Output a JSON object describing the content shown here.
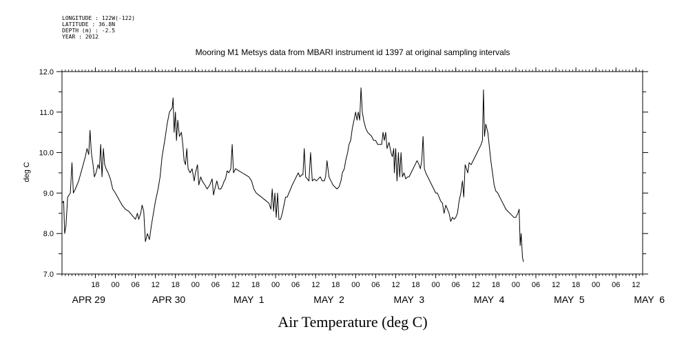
{
  "header": {
    "meta_lines": [
      "LONGITUDE : 122W(-122)",
      "LATITUDE : 36.8N",
      "DEPTH (m) : -2.5",
      "YEAR : 2012"
    ]
  },
  "chart_data": {
    "type": "line",
    "title": "Mooring M1 Metsys data from MBARI instrument id 1397 at original sampling intervals",
    "xlabel": "Air Temperature (deg C)",
    "ylabel": "deg C",
    "x_units": "hours since APR 29 00:00 (2012)",
    "xlim": [
      -16,
      158
    ],
    "ylim": [
      7.0,
      12.0
    ],
    "y_ticks": [
      7.0,
      8.0,
      9.0,
      10.0,
      11.0,
      12.0
    ],
    "y_tick_labels": [
      "7.0",
      "8.0",
      "9.0",
      "10.0",
      "11.0",
      "12.0"
    ],
    "hour_ticks": [
      {
        "x": -6,
        "label": "18"
      },
      {
        "x": 0,
        "label": "00"
      },
      {
        "x": 6,
        "label": "06"
      },
      {
        "x": 12,
        "label": "12"
      },
      {
        "x": 18,
        "label": "18"
      },
      {
        "x": 24,
        "label": "00"
      },
      {
        "x": 30,
        "label": "06"
      },
      {
        "x": 36,
        "label": "12"
      },
      {
        "x": 42,
        "label": "18"
      },
      {
        "x": 48,
        "label": "00"
      },
      {
        "x": 54,
        "label": "06"
      },
      {
        "x": 60,
        "label": "12"
      },
      {
        "x": 66,
        "label": "18"
      },
      {
        "x": 72,
        "label": "00"
      },
      {
        "x": 78,
        "label": "06"
      },
      {
        "x": 84,
        "label": "12"
      },
      {
        "x": 90,
        "label": "18"
      },
      {
        "x": 96,
        "label": "00"
      },
      {
        "x": 102,
        "label": "06"
      },
      {
        "x": 108,
        "label": "12"
      },
      {
        "x": 114,
        "label": "18"
      },
      {
        "x": 120,
        "label": "00"
      },
      {
        "x": 126,
        "label": "06"
      },
      {
        "x": 132,
        "label": "12"
      },
      {
        "x": 138,
        "label": "18"
      },
      {
        "x": 144,
        "label": "00"
      },
      {
        "x": 150,
        "label": "06"
      },
      {
        "x": 156,
        "label": "12"
      }
    ],
    "date_labels": [
      {
        "x": -8,
        "label": "APR 29"
      },
      {
        "x": 16,
        "label": "APR 30"
      },
      {
        "x": 40,
        "label": "MAY  1"
      },
      {
        "x": 64,
        "label": "MAY  2"
      },
      {
        "x": 88,
        "label": "MAY  3"
      },
      {
        "x": 112,
        "label": "MAY  4"
      },
      {
        "x": 136,
        "label": "MAY  5"
      },
      {
        "x": 160,
        "label": "MAY  6"
      }
    ],
    "series": [
      {
        "points": [
          [
            -16,
            8.75
          ],
          [
            -15.5,
            8.8
          ],
          [
            -15.2,
            8.0
          ],
          [
            -14.8,
            8.2
          ],
          [
            -14.3,
            8.9
          ],
          [
            -13.5,
            9.0
          ],
          [
            -13,
            9.75
          ],
          [
            -12.6,
            9.0
          ],
          [
            -12,
            9.1
          ],
          [
            -11,
            9.3
          ],
          [
            -10,
            9.6
          ],
          [
            -9,
            9.9
          ],
          [
            -8.5,
            10.1
          ],
          [
            -8,
            9.95
          ],
          [
            -7.6,
            10.55
          ],
          [
            -7.2,
            10.0
          ],
          [
            -6.7,
            9.7
          ],
          [
            -6.3,
            9.4
          ],
          [
            -5.8,
            9.5
          ],
          [
            -5.2,
            9.7
          ],
          [
            -4.8,
            9.6
          ],
          [
            -4.4,
            10.2
          ],
          [
            -4,
            9.4
          ],
          [
            -3.6,
            10.1
          ],
          [
            -3.2,
            9.7
          ],
          [
            -2.8,
            9.6
          ],
          [
            -2.2,
            9.5
          ],
          [
            -1.5,
            9.35
          ],
          [
            -0.8,
            9.1
          ],
          [
            0,
            9.0
          ],
          [
            1,
            8.85
          ],
          [
            2,
            8.7
          ],
          [
            3,
            8.6
          ],
          [
            4,
            8.55
          ],
          [
            5,
            8.45
          ],
          [
            6,
            8.35
          ],
          [
            6.6,
            8.5
          ],
          [
            7,
            8.35
          ],
          [
            7.6,
            8.5
          ],
          [
            8,
            8.7
          ],
          [
            8.5,
            8.55
          ],
          [
            9,
            7.8
          ],
          [
            9.6,
            8.0
          ],
          [
            10.2,
            7.85
          ],
          [
            10.8,
            8.2
          ],
          [
            11.4,
            8.5
          ],
          [
            12,
            8.8
          ],
          [
            12.8,
            9.1
          ],
          [
            13.4,
            9.4
          ],
          [
            14,
            9.9
          ],
          [
            14.8,
            10.3
          ],
          [
            15.5,
            10.7
          ],
          [
            16.2,
            11.0
          ],
          [
            17,
            11.1
          ],
          [
            17.3,
            11.35
          ],
          [
            17.6,
            10.5
          ],
          [
            18,
            11.0
          ],
          [
            18.3,
            10.3
          ],
          [
            18.7,
            10.8
          ],
          [
            19.2,
            10.4
          ],
          [
            19.8,
            10.5
          ],
          [
            20.2,
            10.2
          ],
          [
            20.6,
            9.8
          ],
          [
            21,
            9.7
          ],
          [
            21.4,
            10.1
          ],
          [
            21.8,
            9.6
          ],
          [
            22.4,
            9.5
          ],
          [
            23,
            9.6
          ],
          [
            23.6,
            9.3
          ],
          [
            24,
            9.5
          ],
          [
            24.6,
            9.7
          ],
          [
            25,
            9.2
          ],
          [
            25.6,
            9.4
          ],
          [
            26,
            9.3
          ],
          [
            26.8,
            9.2
          ],
          [
            27.5,
            9.1
          ],
          [
            28.3,
            9.2
          ],
          [
            29,
            9.35
          ],
          [
            29.4,
            8.95
          ],
          [
            29.8,
            9.1
          ],
          [
            30.4,
            9.3
          ],
          [
            31,
            9.1
          ],
          [
            31.6,
            9.1
          ],
          [
            32.2,
            9.2
          ],
          [
            32.6,
            9.3
          ],
          [
            33,
            9.35
          ],
          [
            33.5,
            9.55
          ],
          [
            34,
            9.5
          ],
          [
            34.6,
            9.6
          ],
          [
            35,
            10.2
          ],
          [
            35.4,
            9.5
          ],
          [
            36,
            9.6
          ],
          [
            37,
            9.55
          ],
          [
            38,
            9.5
          ],
          [
            39,
            9.45
          ],
          [
            40,
            9.4
          ],
          [
            40.8,
            9.3
          ],
          [
            41.5,
            9.1
          ],
          [
            42.2,
            9.0
          ],
          [
            43,
            8.95
          ],
          [
            43.8,
            8.9
          ],
          [
            44.5,
            8.85
          ],
          [
            45.3,
            8.8
          ],
          [
            46,
            8.75
          ],
          [
            46.6,
            8.6
          ],
          [
            47,
            9.1
          ],
          [
            47.4,
            8.55
          ],
          [
            47.8,
            9.0
          ],
          [
            48.2,
            8.4
          ],
          [
            48.6,
            9.0
          ],
          [
            49,
            8.35
          ],
          [
            49.5,
            8.35
          ],
          [
            50,
            8.5
          ],
          [
            50.5,
            8.7
          ],
          [
            51,
            8.9
          ],
          [
            51.5,
            8.9
          ],
          [
            52,
            9.0
          ],
          [
            52.5,
            9.1
          ],
          [
            53,
            9.2
          ],
          [
            53.6,
            9.3
          ],
          [
            54.2,
            9.4
          ],
          [
            54.8,
            9.5
          ],
          [
            55.3,
            9.4
          ],
          [
            55.8,
            9.45
          ],
          [
            56.2,
            9.45
          ],
          [
            56.6,
            10.1
          ],
          [
            57,
            9.4
          ],
          [
            57.5,
            9.35
          ],
          [
            58,
            9.3
          ],
          [
            58.5,
            10.0
          ],
          [
            59,
            9.3
          ],
          [
            59.6,
            9.35
          ],
          [
            60.2,
            9.3
          ],
          [
            60.8,
            9.35
          ],
          [
            61.4,
            9.4
          ],
          [
            62,
            9.3
          ],
          [
            62.6,
            9.3
          ],
          [
            63,
            9.4
          ],
          [
            63.4,
            9.8
          ],
          [
            64,
            9.4
          ],
          [
            64.6,
            9.3
          ],
          [
            65.2,
            9.2
          ],
          [
            65.8,
            9.15
          ],
          [
            66.4,
            9.1
          ],
          [
            67,
            9.15
          ],
          [
            67.6,
            9.3
          ],
          [
            68,
            9.5
          ],
          [
            68.6,
            9.6
          ],
          [
            69,
            9.8
          ],
          [
            69.6,
            10.0
          ],
          [
            70,
            10.2
          ],
          [
            70.5,
            10.3
          ],
          [
            71,
            10.6
          ],
          [
            71.5,
            10.8
          ],
          [
            72,
            11.0
          ],
          [
            72.4,
            10.8
          ],
          [
            72.8,
            11.0
          ],
          [
            73.2,
            10.8
          ],
          [
            73.6,
            11.6
          ],
          [
            74,
            11.0
          ],
          [
            74.4,
            10.8
          ],
          [
            75,
            10.6
          ],
          [
            75.6,
            10.5
          ],
          [
            76.2,
            10.45
          ],
          [
            76.8,
            10.4
          ],
          [
            77.4,
            10.3
          ],
          [
            78,
            10.3
          ],
          [
            78.6,
            10.2
          ],
          [
            79.2,
            10.2
          ],
          [
            79.8,
            10.2
          ],
          [
            80.2,
            10.5
          ],
          [
            80.6,
            10.3
          ],
          [
            81,
            10.5
          ],
          [
            81.4,
            10.1
          ],
          [
            82,
            10.25
          ],
          [
            82.6,
            10.0
          ],
          [
            83,
            9.9
          ],
          [
            83.4,
            10.1
          ],
          [
            83.6,
            9.5
          ],
          [
            84,
            10.1
          ],
          [
            84.4,
            9.3
          ],
          [
            84.8,
            10.0
          ],
          [
            85.2,
            9.4
          ],
          [
            85.6,
            10.0
          ],
          [
            86,
            9.4
          ],
          [
            86.5,
            9.5
          ],
          [
            87,
            9.35
          ],
          [
            87.6,
            9.4
          ],
          [
            88,
            9.4
          ],
          [
            88.6,
            9.5
          ],
          [
            89.2,
            9.6
          ],
          [
            89.8,
            9.7
          ],
          [
            90.4,
            9.8
          ],
          [
            91,
            9.7
          ],
          [
            91.4,
            9.6
          ],
          [
            91.8,
            9.8
          ],
          [
            92.2,
            10.4
          ],
          [
            92.6,
            9.6
          ],
          [
            93,
            9.5
          ],
          [
            93.6,
            9.4
          ],
          [
            94.2,
            9.3
          ],
          [
            94.8,
            9.2
          ],
          [
            95.4,
            9.1
          ],
          [
            96,
            9.0
          ],
          [
            96.5,
            9.0
          ],
          [
            97,
            8.9
          ],
          [
            97.5,
            8.8
          ],
          [
            98,
            8.75
          ],
          [
            98.5,
            8.5
          ],
          [
            99,
            8.7
          ],
          [
            99.5,
            8.6
          ],
          [
            100,
            8.5
          ],
          [
            100.5,
            8.3
          ],
          [
            101,
            8.4
          ],
          [
            101.5,
            8.35
          ],
          [
            102,
            8.4
          ],
          [
            102.5,
            8.5
          ],
          [
            103,
            8.8
          ],
          [
            103.5,
            9.0
          ],
          [
            104,
            9.3
          ],
          [
            104.4,
            8.9
          ],
          [
            104.8,
            9.7
          ],
          [
            105.2,
            9.6
          ],
          [
            105.6,
            9.5
          ],
          [
            106,
            9.75
          ],
          [
            106.6,
            9.7
          ],
          [
            107.2,
            9.8
          ],
          [
            107.8,
            9.9
          ],
          [
            108.4,
            10.0
          ],
          [
            109,
            10.1
          ],
          [
            109.6,
            10.2
          ],
          [
            110,
            10.3
          ],
          [
            110.3,
            11.55
          ],
          [
            110.6,
            10.4
          ],
          [
            111,
            10.7
          ],
          [
            111.6,
            10.5
          ],
          [
            112,
            10.2
          ],
          [
            112.5,
            9.8
          ],
          [
            113,
            9.5
          ],
          [
            113.5,
            9.2
          ],
          [
            114,
            9.05
          ],
          [
            114.6,
            9.0
          ],
          [
            115.2,
            8.9
          ],
          [
            115.8,
            8.8
          ],
          [
            116.4,
            8.7
          ],
          [
            117,
            8.6
          ],
          [
            117.6,
            8.55
          ],
          [
            118.2,
            8.5
          ],
          [
            118.8,
            8.45
          ],
          [
            119.4,
            8.4
          ],
          [
            120,
            8.4
          ],
          [
            120.6,
            8.5
          ],
          [
            121,
            8.6
          ],
          [
            121.3,
            7.7
          ],
          [
            121.6,
            8.0
          ],
          [
            122,
            7.4
          ],
          [
            122.3,
            7.3
          ]
        ]
      }
    ]
  }
}
